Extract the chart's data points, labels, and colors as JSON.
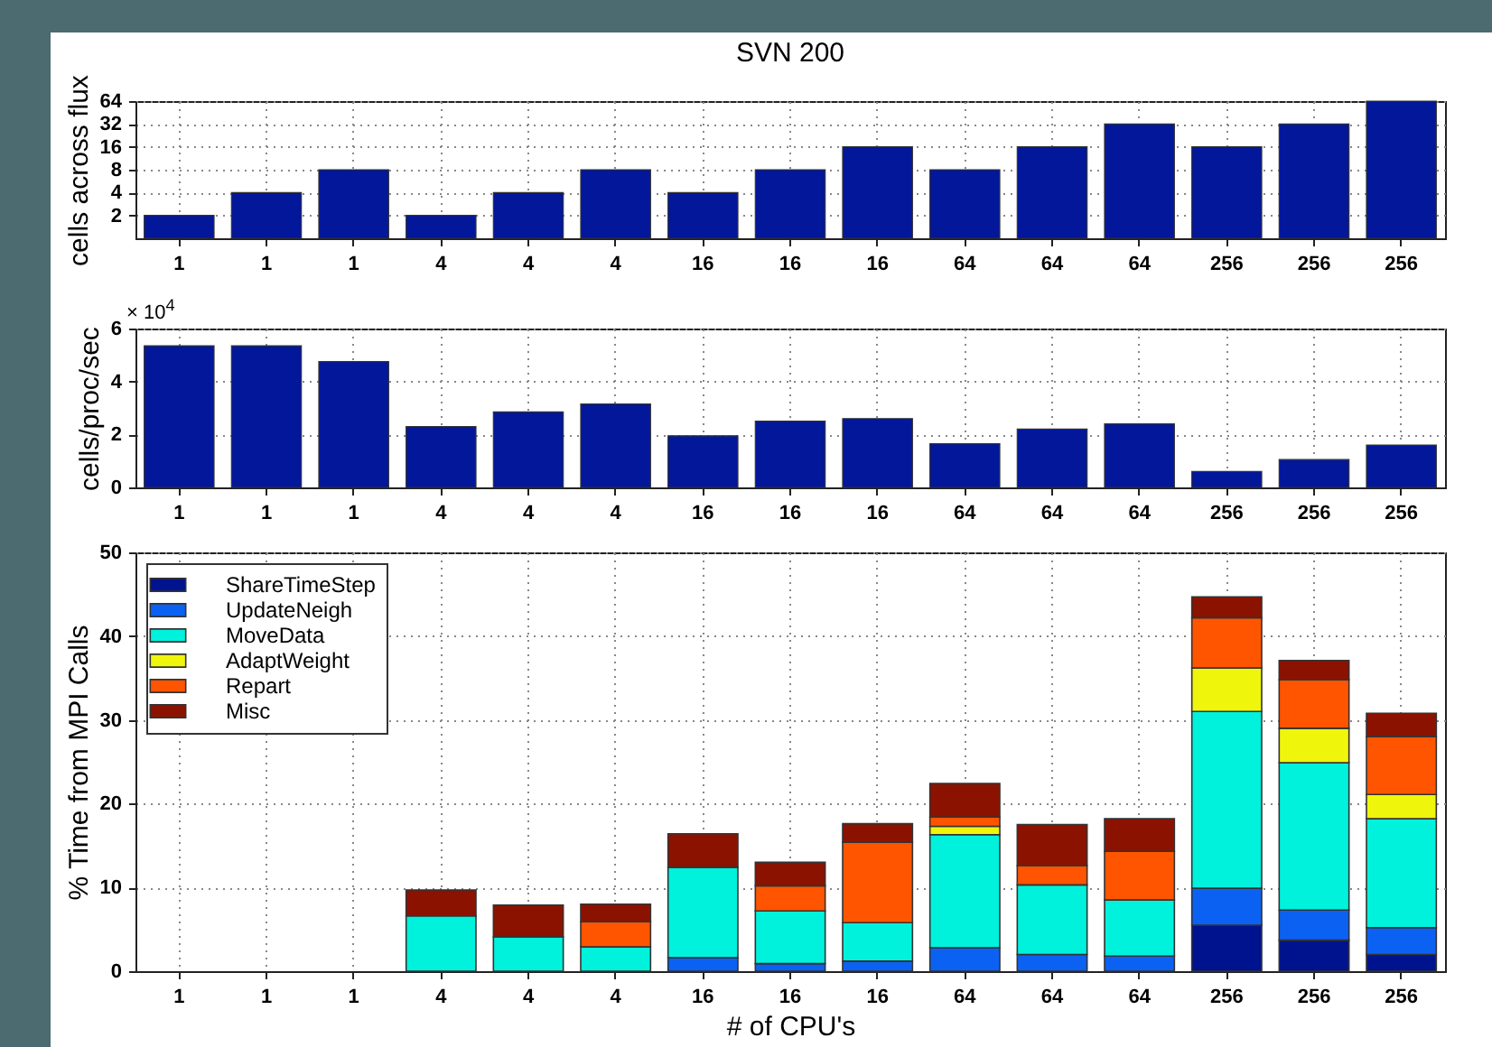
{
  "chart_data": [
    {
      "type": "bar",
      "title": "SVN 200",
      "ylabel": "cells across flux",
      "categories": [
        "1",
        "1",
        "1",
        "4",
        "4",
        "4",
        "16",
        "16",
        "16",
        "64",
        "64",
        "64",
        "256",
        "256",
        "256"
      ],
      "values": [
        2,
        4,
        8,
        2,
        4,
        8,
        4,
        8,
        16,
        8,
        16,
        32,
        16,
        32,
        64
      ],
      "color": "#03179a",
      "log": "y",
      "ylim": [
        1,
        64
      ],
      "yticks": [
        2,
        4,
        8,
        16,
        32,
        64
      ],
      "grid": true,
      "legend": false
    },
    {
      "type": "bar",
      "ylabel": "cells/proc/sec",
      "annotations": [
        "× 10$^{4}$"
      ],
      "categories": [
        "1",
        "1",
        "1",
        "4",
        "4",
        "4",
        "16",
        "16",
        "16",
        "64",
        "64",
        "64",
        "256",
        "256",
        "256"
      ],
      "values": [
        5.35,
        5.35,
        4.75,
        2.3,
        2.85,
        3.15,
        1.95,
        2.5,
        2.6,
        1.65,
        2.2,
        2.4,
        0.6,
        1.05,
        1.6
      ],
      "color": "#03179a",
      "ylim": [
        0,
        6
      ],
      "yticks": [
        0,
        2,
        4,
        6
      ],
      "grid": true,
      "legend": false
    },
    {
      "type": "bar",
      "stacked": true,
      "xlabel": "# of CPU's",
      "ylabel": "% Time from MPI Calls",
      "categories": [
        "1",
        "1",
        "1",
        "4",
        "4",
        "4",
        "16",
        "16",
        "16",
        "64",
        "64",
        "64",
        "256",
        "256",
        "256"
      ],
      "ylim": [
        0,
        50
      ],
      "yticks": [
        0,
        10,
        20,
        30,
        40,
        50
      ],
      "grid": true,
      "legend": "top left",
      "series": [
        {
          "name": "ShareTimeStep",
          "color": "#00138f",
          "values": [
            0,
            0,
            0,
            0,
            0,
            0,
            0,
            0,
            0,
            0,
            0,
            0,
            5.5,
            3.7,
            2.0
          ]
        },
        {
          "name": "UpdateNeigh",
          "color": "#0b62f2",
          "values": [
            0,
            0,
            0,
            0,
            0,
            0,
            1.6,
            0.9,
            1.2,
            2.8,
            2.0,
            1.8,
            4.4,
            3.6,
            3.2
          ]
        },
        {
          "name": "MoveData",
          "color": "#00f2dc",
          "values": [
            0,
            0,
            0,
            6.6,
            4.1,
            2.9,
            10.8,
            6.3,
            4.6,
            13.5,
            8.3,
            6.7,
            21.1,
            17.6,
            13.0
          ]
        },
        {
          "name": "AdaptWeight",
          "color": "#f0f50c",
          "values": [
            0,
            0,
            0,
            0,
            0,
            0,
            0,
            0,
            0,
            1.0,
            0,
            0,
            5.2,
            4.1,
            2.9
          ]
        },
        {
          "name": "Repart",
          "color": "#ff5500",
          "values": [
            0,
            0,
            0,
            0,
            0,
            3.0,
            0,
            3.0,
            9.6,
            1.1,
            2.3,
            5.8,
            6.0,
            5.8,
            6.9
          ]
        },
        {
          "name": "Misc",
          "color": "#8c1200",
          "values": [
            0,
            0,
            0,
            3.1,
            3.8,
            2.1,
            4.0,
            2.8,
            2.2,
            4.0,
            4.9,
            3.9,
            2.5,
            2.3,
            2.8
          ]
        }
      ]
    }
  ]
}
